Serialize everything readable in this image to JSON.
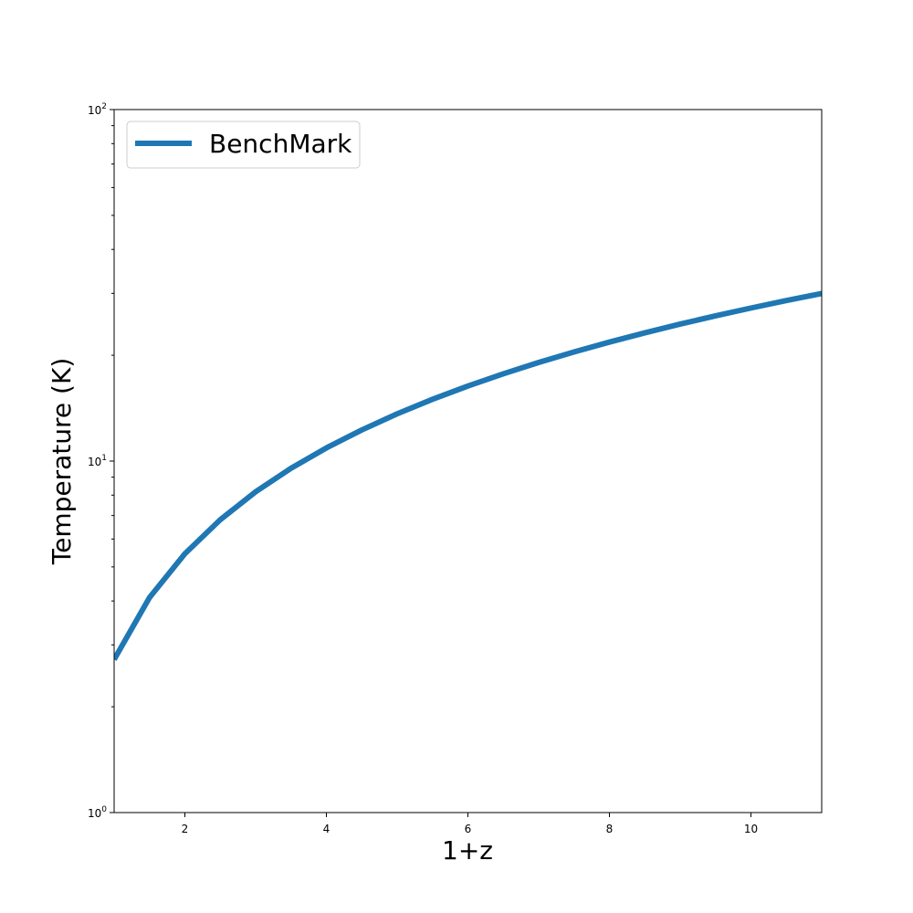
{
  "chart_data": {
    "type": "line",
    "title": "",
    "xlabel": "1+z",
    "ylabel": "Temperature (K)",
    "xlim": [
      1,
      11
    ],
    "ylim": [
      1,
      100
    ],
    "yscale": "log",
    "grid": false,
    "legend_position": "top-left",
    "x_ticks": [
      2,
      4,
      6,
      8,
      10
    ],
    "x_tick_labels": [
      "2",
      "4",
      "6",
      "8",
      "10"
    ],
    "y_major_ticks": [
      1,
      10,
      100
    ],
    "y_tick_labels": [
      "10^0",
      "10^1",
      "10^2"
    ],
    "series": [
      {
        "name": "BenchMark",
        "color": "#1f77b4",
        "x": [
          1,
          1.5,
          2,
          2.5,
          3,
          3.5,
          4,
          4.5,
          5,
          5.5,
          6,
          6.5,
          7,
          7.5,
          8,
          8.5,
          9,
          9.5,
          10,
          10.5,
          11
        ],
        "y": [
          2.725,
          4.09,
          5.45,
          6.81,
          8.18,
          9.54,
          10.9,
          12.26,
          13.63,
          14.99,
          16.35,
          17.71,
          19.08,
          20.44,
          21.8,
          23.16,
          24.53,
          25.89,
          27.25,
          28.61,
          29.98
        ]
      }
    ]
  }
}
